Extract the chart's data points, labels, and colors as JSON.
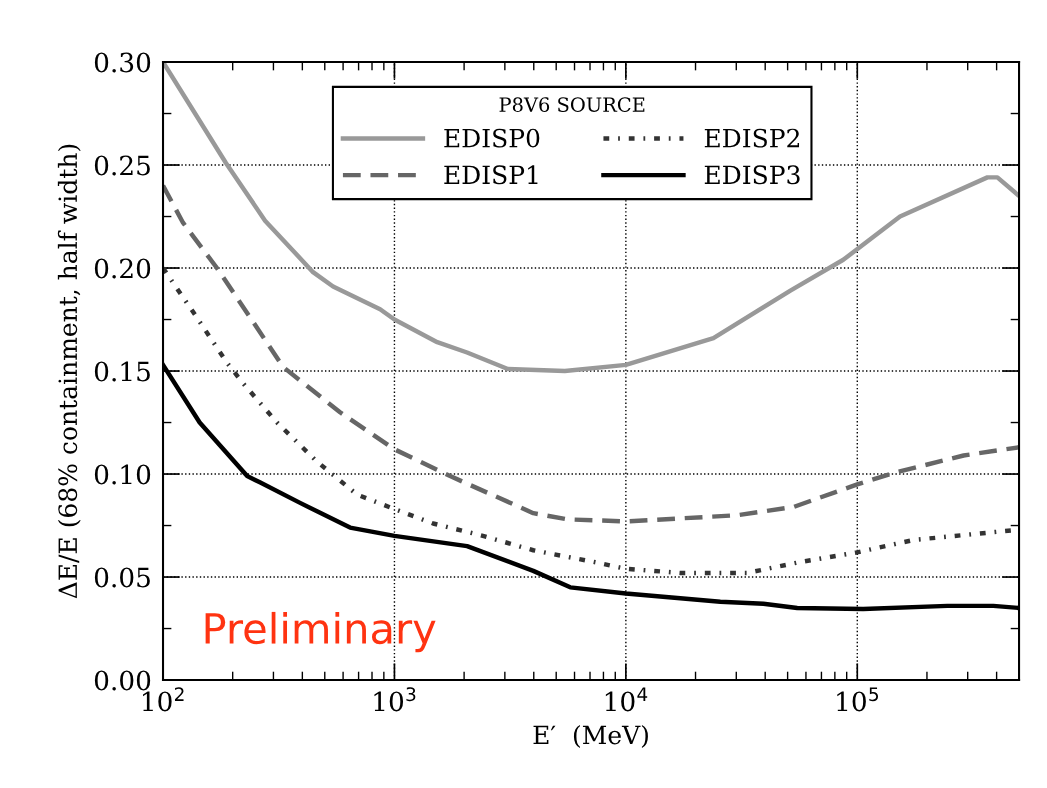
{
  "chart_data": {
    "type": "line",
    "xlabel": "E′  (MeV)",
    "ylabel": "ΔE/E (68% containment, half width)",
    "log": "x",
    "xlim": [
      100,
      500000
    ],
    "ylim": [
      0,
      0.3
    ],
    "xticks": [
      {
        "value": 100,
        "label": "10$^{2}$"
      },
      {
        "value": 1000,
        "label": "10$^{3}$"
      },
      {
        "value": 10000,
        "label": "10$^{4}$"
      },
      {
        "value": 100000,
        "label": "10$^{5}$"
      }
    ],
    "yticks": [
      {
        "value": 0,
        "label": "0.00"
      },
      {
        "value": 0.05,
        "label": "0.05"
      },
      {
        "value": 0.1,
        "label": "0.10"
      },
      {
        "value": 0.15,
        "label": "0.15"
      },
      {
        "value": 0.2,
        "label": "0.20"
      },
      {
        "value": 0.25,
        "label": "0.25"
      },
      {
        "value": 0.3,
        "label": "0.30"
      }
    ],
    "grid": true,
    "legend": "top",
    "legend_title": "P8V6 SOURCE",
    "marker": "none",
    "annotations": [
      "Preliminary"
    ],
    "series": [
      {
        "name": "EDISP0",
        "color": "#999999",
        "line_style": "solid",
        "x": [
          100,
          187,
          276,
          445,
          543,
          867,
          1000,
          1531,
          2060,
          3090,
          5450,
          10000,
          23900,
          51400,
          87000,
          153000,
          365000,
          403000,
          500000
        ],
        "values": [
          0.3,
          0.251,
          0.223,
          0.198,
          0.191,
          0.18,
          0.175,
          0.164,
          0.159,
          0.151,
          0.15,
          0.153,
          0.166,
          0.189,
          0.204,
          0.225,
          0.244,
          0.244,
          0.235
        ]
      },
      {
        "name": "EDISP1",
        "color": "#666666",
        "line_style": "dashed",
        "x": [
          100,
          122,
          171,
          238,
          330,
          582,
          1000,
          1740,
          3980,
          5580,
          10000,
          30300,
          53000,
          100000,
          149000,
          288000,
          500000
        ],
        "values": [
          0.24,
          0.222,
          0.2,
          0.176,
          0.152,
          0.13,
          0.112,
          0.099,
          0.081,
          0.078,
          0.077,
          0.08,
          0.084,
          0.095,
          0.101,
          0.109,
          0.113
        ]
      },
      {
        "name": "EDISP2",
        "color": "#333333",
        "line_style": "dashdot",
        "x": [
          100,
          140,
          189,
          222,
          311,
          463,
          690,
          1000,
          1470,
          2410,
          3980,
          7520,
          10000,
          17200,
          33500,
          55000,
          100000,
          175000,
          500000
        ],
        "values": [
          0.2,
          0.176,
          0.154,
          0.144,
          0.125,
          0.106,
          0.09,
          0.083,
          0.076,
          0.07,
          0.063,
          0.057,
          0.054,
          0.052,
          0.052,
          0.057,
          0.062,
          0.068,
          0.073
        ]
      },
      {
        "name": "EDISP3",
        "color": "#000000",
        "line_style": "solid",
        "x": [
          100,
          144,
          231,
          262,
          391,
          643,
          1000,
          2060,
          3980,
          5750,
          10000,
          25600,
          39300,
          55000,
          106000,
          245000,
          387000,
          500000
        ],
        "values": [
          0.153,
          0.125,
          0.099,
          0.096,
          0.086,
          0.074,
          0.07,
          0.065,
          0.053,
          0.045,
          0.042,
          0.038,
          0.037,
          0.035,
          0.0345,
          0.036,
          0.036,
          0.035
        ]
      }
    ]
  }
}
